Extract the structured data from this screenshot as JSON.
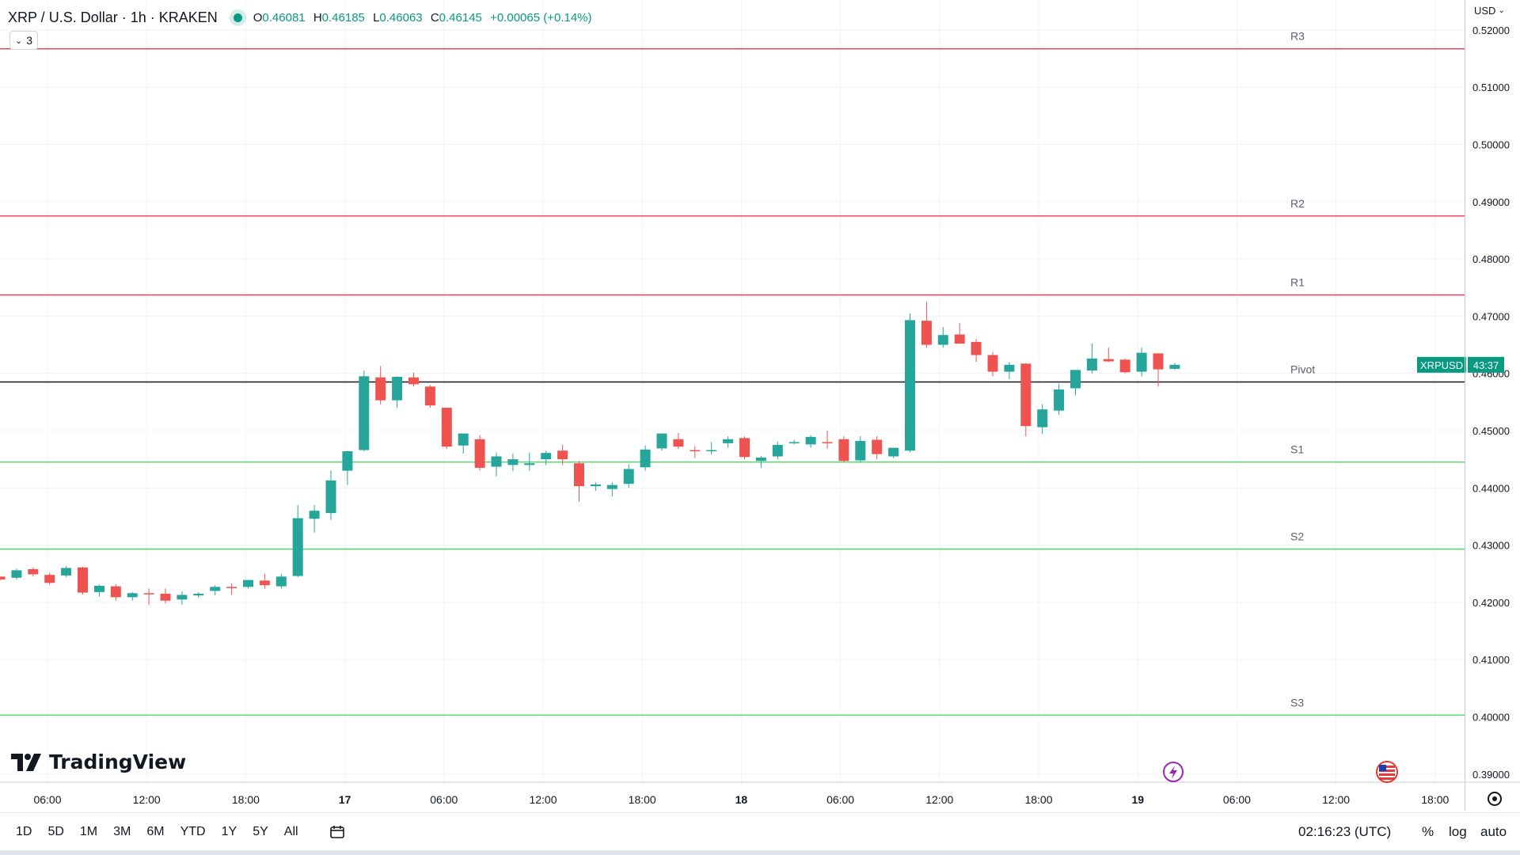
{
  "header": {
    "symbol": "XRP / U.S. Dollar · 1h · KRAKEN",
    "o_key": "O",
    "o": "0.46081",
    "h_key": "H",
    "h": "0.46185",
    "l_key": "L",
    "l": "0.46063",
    "c_key": "C",
    "c": "0.46145",
    "change": "+0.00065 (+0.14%)"
  },
  "indicator_toggle": {
    "count": "3"
  },
  "currency": "USD",
  "logo": "TradingView",
  "price_tag": {
    "symbol": "XRPUSD",
    "countdown": "43:37"
  },
  "timeframes": [
    "1D",
    "5D",
    "1M",
    "3M",
    "6M",
    "YTD",
    "1Y",
    "5Y",
    "All"
  ],
  "clock": "02:16:23 (UTC)",
  "options": {
    "percent": "%",
    "log": "log",
    "auto": "auto"
  },
  "colors": {
    "up": "#26a69a",
    "down": "#ef5350",
    "resistance": "#f23645",
    "support": "#4cd964",
    "pivot": "#131722",
    "accent": "#089981"
  },
  "chart_data": {
    "type": "candlestick",
    "symbol": "XRP / U.S. Dollar",
    "interval": "1h",
    "exchange": "KRAKEN",
    "ylim": [
      0.389,
      0.5215
    ],
    "y_ticks": [
      "0.52000",
      "0.51000",
      "0.50000",
      "0.49000",
      "0.48000",
      "0.47000",
      "0.46000",
      "0.45000",
      "0.44000",
      "0.43000",
      "0.42000",
      "0.41000",
      "0.40000",
      "0.39000"
    ],
    "x_ticks": [
      "06:00",
      "12:00",
      "18:00",
      "17",
      "06:00",
      "12:00",
      "18:00",
      "18",
      "06:00",
      "12:00",
      "18:00",
      "19",
      "06:00",
      "12:00",
      "18:00"
    ],
    "levels": [
      {
        "name": "R3",
        "value": 0.5167,
        "kind": "resistance"
      },
      {
        "name": "R2",
        "value": 0.4875,
        "kind": "resistance"
      },
      {
        "name": "R1",
        "value": 0.4737,
        "kind": "resistance"
      },
      {
        "name": "Pivot",
        "value": 0.4585,
        "kind": "pivot"
      },
      {
        "name": "S1",
        "value": 0.4445,
        "kind": "support"
      },
      {
        "name": "S2",
        "value": 0.4293,
        "kind": "support"
      },
      {
        "name": "S3",
        "value": 0.4003,
        "kind": "support"
      }
    ],
    "candles": [
      [
        0.4245,
        0.4245,
        0.4238,
        0.424
      ],
      [
        0.4243,
        0.4259,
        0.424,
        0.4256
      ],
      [
        0.4258,
        0.4261,
        0.4245,
        0.4249
      ],
      [
        0.4248,
        0.4252,
        0.4231,
        0.4234
      ],
      [
        0.4247,
        0.4263,
        0.4244,
        0.426
      ],
      [
        0.4261,
        0.4262,
        0.4214,
        0.4217
      ],
      [
        0.4218,
        0.4231,
        0.421,
        0.4229
      ],
      [
        0.4228,
        0.4232,
        0.4203,
        0.4209
      ],
      [
        0.4209,
        0.4218,
        0.4203,
        0.4216
      ],
      [
        0.4216,
        0.4224,
        0.4196,
        0.4215
      ],
      [
        0.4215,
        0.4224,
        0.4198,
        0.4203
      ],
      [
        0.4205,
        0.4219,
        0.4196,
        0.4213
      ],
      [
        0.4212,
        0.4218,
        0.4208,
        0.4215
      ],
      [
        0.422,
        0.423,
        0.4212,
        0.4227
      ],
      [
        0.4227,
        0.4233,
        0.4213,
        0.4225
      ],
      [
        0.4227,
        0.4239,
        0.4224,
        0.4239
      ],
      [
        0.4238,
        0.425,
        0.4224,
        0.423
      ],
      [
        0.4228,
        0.425,
        0.4224,
        0.4245
      ],
      [
        0.4246,
        0.437,
        0.4244,
        0.4347
      ],
      [
        0.4346,
        0.437,
        0.4322,
        0.436
      ],
      [
        0.4356,
        0.443,
        0.4344,
        0.4413
      ],
      [
        0.443,
        0.4465,
        0.4405,
        0.4464
      ],
      [
        0.4466,
        0.4605,
        0.4464,
        0.4595
      ],
      [
        0.4593,
        0.4613,
        0.4546,
        0.4553
      ],
      [
        0.4553,
        0.4595,
        0.454,
        0.4594
      ],
      [
        0.4593,
        0.4601,
        0.4577,
        0.4581
      ],
      [
        0.4577,
        0.458,
        0.454,
        0.4544
      ],
      [
        0.454,
        0.454,
        0.4468,
        0.4472
      ],
      [
        0.4474,
        0.4494,
        0.446,
        0.4495
      ],
      [
        0.4485,
        0.4492,
        0.443,
        0.4435
      ],
      [
        0.4437,
        0.4462,
        0.442,
        0.4455
      ],
      [
        0.444,
        0.446,
        0.4429,
        0.445
      ],
      [
        0.444,
        0.4462,
        0.443,
        0.4443
      ],
      [
        0.445,
        0.4465,
        0.444,
        0.4461
      ],
      [
        0.4465,
        0.4475,
        0.444,
        0.445
      ],
      [
        0.4443,
        0.4447,
        0.4376,
        0.4403
      ],
      [
        0.4403,
        0.441,
        0.4395,
        0.4406
      ],
      [
        0.4398,
        0.441,
        0.4385,
        0.4405
      ],
      [
        0.4407,
        0.4441,
        0.44,
        0.4433
      ],
      [
        0.4436,
        0.4474,
        0.443,
        0.4467
      ],
      [
        0.4469,
        0.4495,
        0.4465,
        0.4495
      ],
      [
        0.4485,
        0.4496,
        0.4468,
        0.4472
      ],
      [
        0.4466,
        0.4473,
        0.4452,
        0.4465
      ],
      [
        0.4465,
        0.448,
        0.4458,
        0.4466
      ],
      [
        0.4478,
        0.449,
        0.447,
        0.4485
      ],
      [
        0.4487,
        0.449,
        0.445,
        0.4454
      ],
      [
        0.4447,
        0.4456,
        0.4435,
        0.4453
      ],
      [
        0.4455,
        0.4481,
        0.445,
        0.4475
      ],
      [
        0.4478,
        0.4484,
        0.4476,
        0.448
      ],
      [
        0.4476,
        0.4492,
        0.447,
        0.4489
      ],
      [
        0.448,
        0.45,
        0.4468,
        0.4478
      ],
      [
        0.4485,
        0.449,
        0.4444,
        0.4447
      ],
      [
        0.4448,
        0.449,
        0.4444,
        0.4482
      ],
      [
        0.4484,
        0.449,
        0.445,
        0.4459
      ],
      [
        0.4455,
        0.447,
        0.4452,
        0.447
      ],
      [
        0.4465,
        0.4705,
        0.4462,
        0.4693
      ],
      [
        0.4692,
        0.4725,
        0.4645,
        0.465
      ],
      [
        0.465,
        0.4681,
        0.4645,
        0.4667
      ],
      [
        0.4668,
        0.4688,
        0.4652,
        0.4652
      ],
      [
        0.4655,
        0.466,
        0.462,
        0.4632
      ],
      [
        0.4632,
        0.4637,
        0.4595,
        0.4603
      ],
      [
        0.4603,
        0.462,
        0.459,
        0.4615
      ],
      [
        0.4617,
        0.4618,
        0.449,
        0.4508
      ],
      [
        0.4506,
        0.4546,
        0.4494,
        0.4537
      ],
      [
        0.4535,
        0.4582,
        0.4528,
        0.4572
      ],
      [
        0.4574,
        0.4604,
        0.4562,
        0.4606
      ],
      [
        0.4605,
        0.4652,
        0.46,
        0.4626
      ],
      [
        0.4625,
        0.4645,
        0.462,
        0.4621
      ],
      [
        0.4624,
        0.4626,
        0.46,
        0.4602
      ],
      [
        0.4603,
        0.4645,
        0.4595,
        0.4636
      ],
      [
        0.4635,
        0.4635,
        0.4577,
        0.4607
      ],
      [
        0.4608,
        0.4618,
        0.4606,
        0.4615
      ]
    ]
  }
}
